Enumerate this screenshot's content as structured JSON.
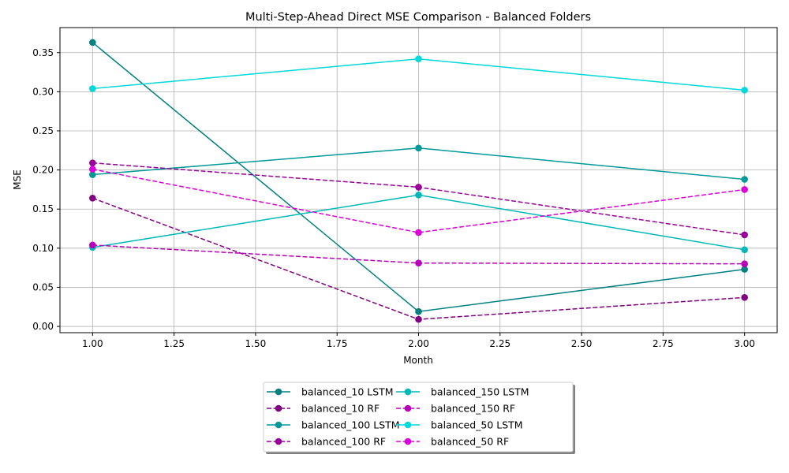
{
  "chart_data": {
    "type": "line",
    "title": "Multi-Step-Ahead Direct MSE Comparison - Balanced Folders",
    "xlabel": "Month",
    "ylabel": "MSE",
    "xlim": [
      0.9,
      3.1
    ],
    "ylim": [
      -0.008,
      0.382
    ],
    "xticks": [
      1.0,
      1.25,
      1.5,
      1.75,
      2.0,
      2.25,
      2.5,
      2.75,
      3.0
    ],
    "xtick_labels": [
      "1.00",
      "1.25",
      "1.50",
      "1.75",
      "2.00",
      "2.25",
      "2.50",
      "2.75",
      "3.00"
    ],
    "yticks": [
      0.0,
      0.05,
      0.1,
      0.15,
      0.2,
      0.25,
      0.3,
      0.35
    ],
    "ytick_labels": [
      "0.00",
      "0.05",
      "0.10",
      "0.15",
      "0.20",
      "0.25",
      "0.30",
      "0.35"
    ],
    "grid": true,
    "legend_placement": "bottom-center",
    "x": [
      1,
      2,
      3
    ],
    "series": [
      {
        "name": "balanced_10 LSTM",
        "values": [
          0.363,
          0.019,
          0.073
        ],
        "color": "#008080",
        "style": "solid"
      },
      {
        "name": "balanced_10 RF",
        "values": [
          0.164,
          0.009,
          0.037
        ],
        "color": "#800080",
        "style": "dashed"
      },
      {
        "name": "balanced_100 LSTM",
        "values": [
          0.194,
          0.228,
          0.188
        ],
        "color": "#009999",
        "style": "solid"
      },
      {
        "name": "balanced_100 RF",
        "values": [
          0.209,
          0.178,
          0.117
        ],
        "color": "#990099",
        "style": "dashed"
      },
      {
        "name": "balanced_150 LSTM",
        "values": [
          0.101,
          0.168,
          0.098
        ],
        "color": "#00B8B8",
        "style": "solid"
      },
      {
        "name": "balanced_150 RF",
        "values": [
          0.104,
          0.081,
          0.08
        ],
        "color": "#B800B8",
        "style": "dashed"
      },
      {
        "name": "balanced_50 LSTM",
        "values": [
          0.304,
          0.342,
          0.302
        ],
        "color": "#00D9D9",
        "style": "solid"
      },
      {
        "name": "balanced_50 RF",
        "values": [
          0.201,
          0.12,
          0.175
        ],
        "color": "#D900D9",
        "style": "dashed"
      }
    ]
  }
}
